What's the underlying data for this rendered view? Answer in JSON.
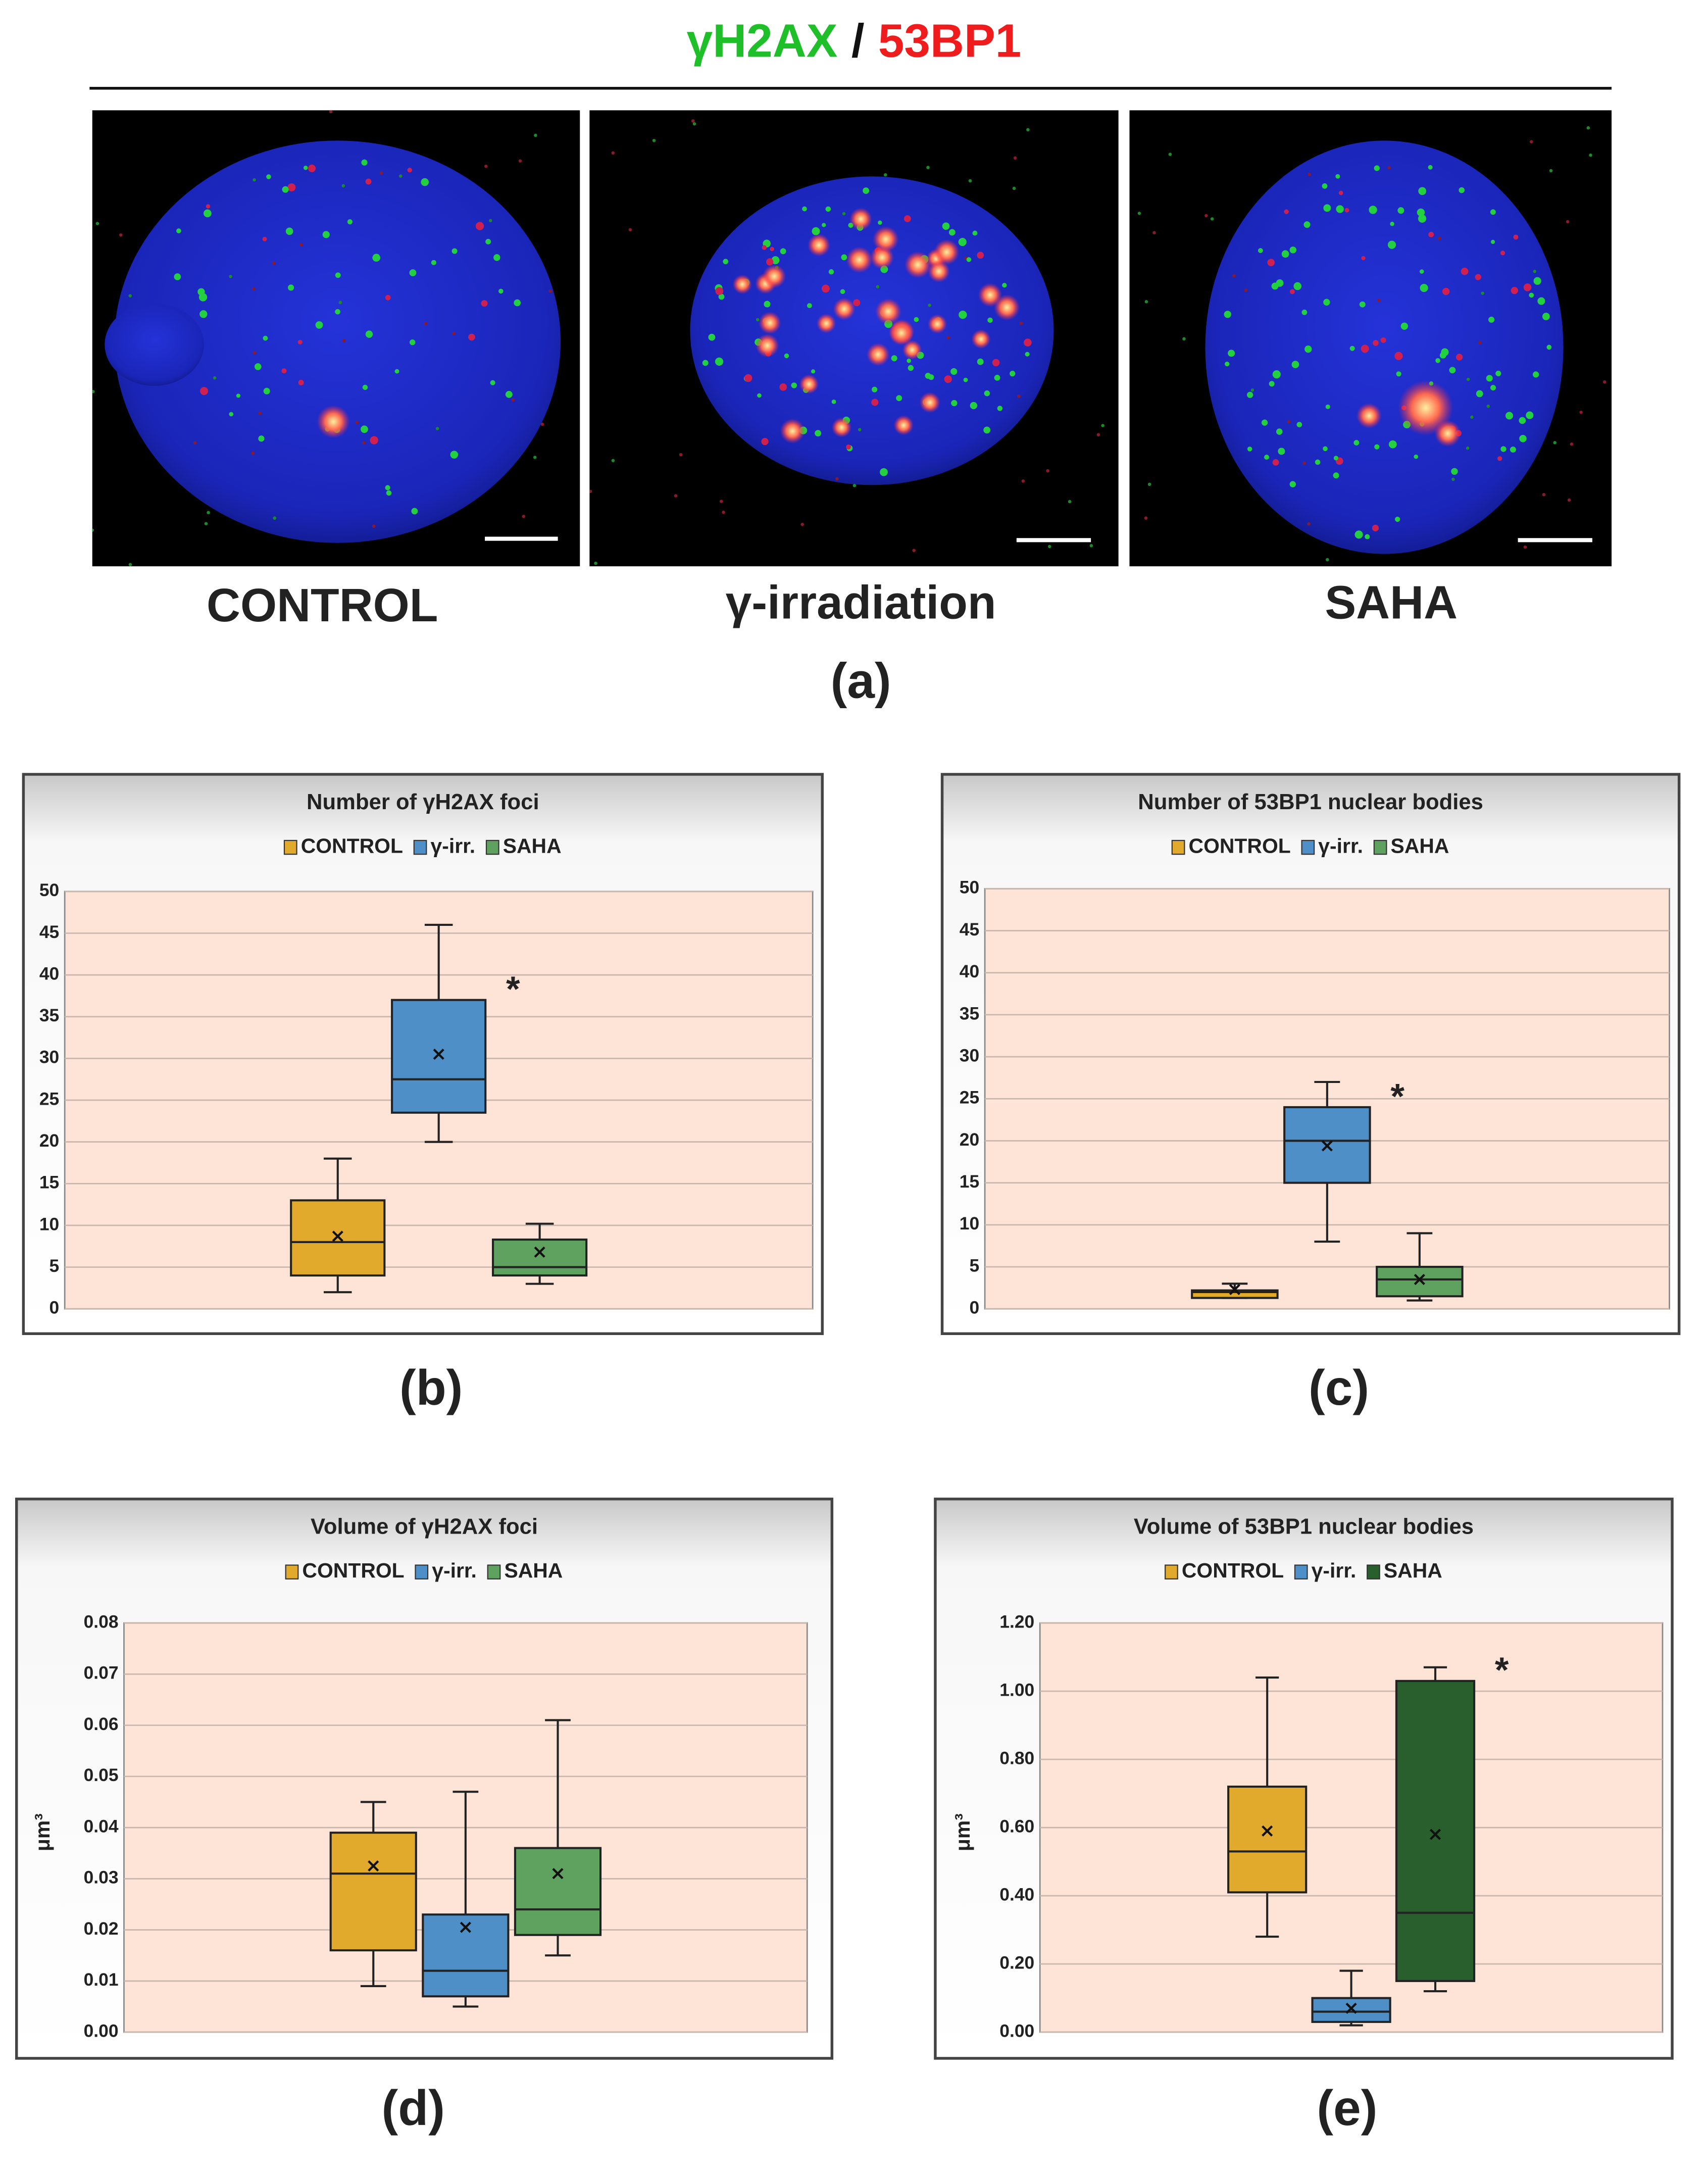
{
  "figure": {
    "title": [
      {
        "text": "γH2AX",
        "color": "#1fbf2a"
      },
      {
        "text": "/",
        "color": "#111111"
      },
      {
        "text": "53BP1",
        "color": "#ee1c1c"
      }
    ],
    "images": [
      {
        "label": "CONTROL"
      },
      {
        "label": "γ-irradiation"
      },
      {
        "label": "SAHA"
      }
    ],
    "panel_label": "(a)"
  },
  "chart_data": [
    {
      "type": "box",
      "title": "Number of γH2AX foci",
      "panel_label": "(b)",
      "ylim": [
        0,
        50
      ],
      "yticks": [
        0,
        5,
        10,
        15,
        20,
        25,
        30,
        35,
        40,
        45,
        50
      ],
      "grid": true,
      "series": [
        {
          "name": "CONTROL",
          "color": "#e2aa2c",
          "min": 2,
          "q1": 4,
          "median": 8,
          "q3": 13,
          "max": 18,
          "mean": 8.7
        },
        {
          "name": "γ-irr.",
          "color": "#4d8fc6",
          "min": 20,
          "q1": 23.5,
          "median": 27.5,
          "q3": 37,
          "max": 46,
          "mean": 30.5,
          "annotation": "*"
        },
        {
          "name": "SAHA",
          "color": "#5fa15f",
          "min": 3,
          "q1": 4,
          "median": 5,
          "q3": 8.3,
          "max": 10.2,
          "mean": 6.8
        }
      ]
    },
    {
      "type": "box",
      "title": "Number of 53BP1 nuclear bodies",
      "panel_label": "(c)",
      "ylim": [
        0,
        50
      ],
      "yticks": [
        0,
        5,
        10,
        15,
        20,
        25,
        30,
        35,
        40,
        45,
        50
      ],
      "grid": true,
      "series": [
        {
          "name": "CONTROL",
          "color": "#e2aa2c",
          "min": 1.3,
          "q1": 1.3,
          "median": 2,
          "q3": 2.2,
          "max": 3,
          "mean": 2.3
        },
        {
          "name": "γ-irr.",
          "color": "#4d8fc6",
          "min": 8,
          "q1": 15,
          "median": 20,
          "q3": 24,
          "max": 27,
          "mean": 19.4,
          "annotation": "*"
        },
        {
          "name": "SAHA",
          "color": "#5fa15f",
          "min": 1,
          "q1": 1.5,
          "median": 3.5,
          "q3": 5,
          "max": 9,
          "mean": 3.5
        }
      ]
    },
    {
      "type": "box",
      "title": "Volume of γH2AX foci",
      "panel_label": "(d)",
      "ylabel": "μm³",
      "ylim": [
        0,
        0.08
      ],
      "yticks": [
        {
          "value": 0,
          "label": "0.00"
        },
        {
          "value": 0.01,
          "label": "0.01"
        },
        {
          "value": 0.02,
          "label": "0.02"
        },
        {
          "value": 0.03,
          "label": "0.03"
        },
        {
          "value": 0.04,
          "label": "0.04"
        },
        {
          "value": 0.05,
          "label": "0.05"
        },
        {
          "value": 0.06,
          "label": "0.06"
        },
        {
          "value": 0.07,
          "label": "0.07"
        },
        {
          "value": 0.08,
          "label": "0.08"
        }
      ],
      "grid": true,
      "series": [
        {
          "name": "CONTROL",
          "color": "#e2aa2c",
          "min": 0.009,
          "q1": 0.016,
          "median": 0.031,
          "q3": 0.039,
          "max": 0.045,
          "mean": 0.0325
        },
        {
          "name": "γ-irr.",
          "color": "#4d8fc6",
          "min": 0.005,
          "q1": 0.007,
          "median": 0.012,
          "q3": 0.023,
          "max": 0.047,
          "mean": 0.0205
        },
        {
          "name": "SAHA",
          "color": "#5fa15f",
          "min": 0.015,
          "q1": 0.019,
          "median": 0.024,
          "q3": 0.036,
          "max": 0.061,
          "mean": 0.031
        }
      ]
    },
    {
      "type": "box",
      "title": "Volume of 53BP1 nuclear bodies",
      "panel_label": "(e)",
      "ylabel": "μm³",
      "ylim": [
        0,
        1.2
      ],
      "yticks": [
        {
          "value": 0,
          "label": "0.00"
        },
        {
          "value": 0.2,
          "label": "0.20"
        },
        {
          "value": 0.4,
          "label": "0.40"
        },
        {
          "value": 0.6,
          "label": "0.60"
        },
        {
          "value": 0.8,
          "label": "0.80"
        },
        {
          "value": 1,
          "label": "1.00"
        },
        {
          "value": 1.2,
          "label": "1.20"
        }
      ],
      "grid": true,
      "series": [
        {
          "name": "CONTROL",
          "color": "#e2aa2c",
          "min": 0.28,
          "q1": 0.41,
          "median": 0.53,
          "q3": 0.72,
          "max": 1.04,
          "mean": 0.59
        },
        {
          "name": "γ-irr.",
          "color": "#4d8fc6",
          "min": 0.02,
          "q1": 0.03,
          "median": 0.06,
          "q3": 0.1,
          "max": 0.18,
          "mean": 0.07
        },
        {
          "name": "SAHA",
          "color": "#285f2c",
          "min": 0.12,
          "q1": 0.15,
          "median": 0.35,
          "q3": 1.03,
          "max": 1.07,
          "mean": 0.58,
          "annotation": "*"
        }
      ]
    }
  ]
}
